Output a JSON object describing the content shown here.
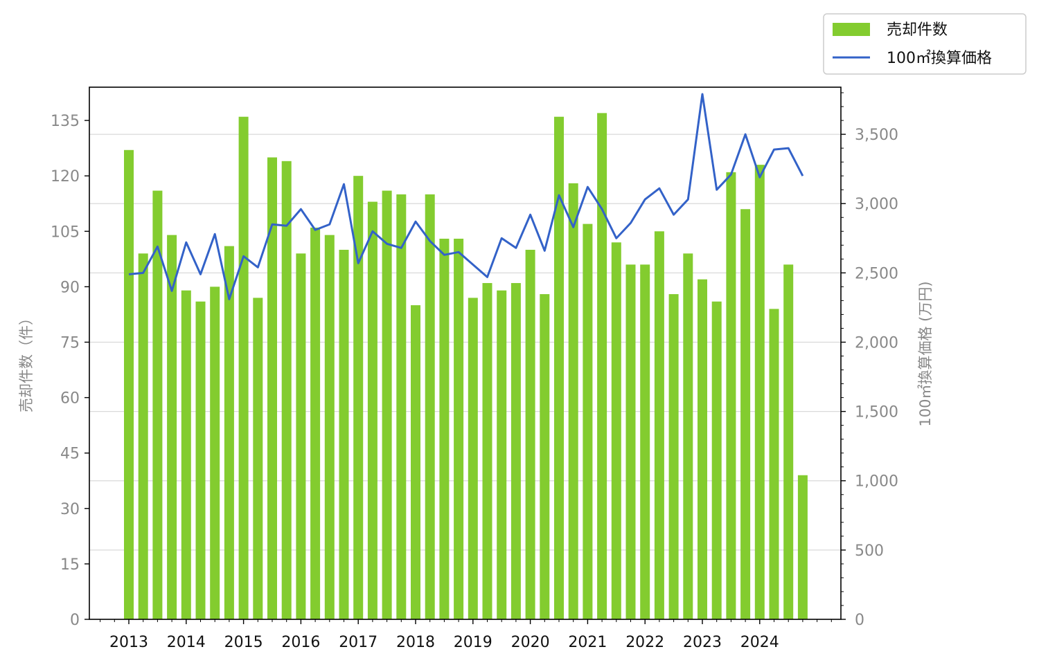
{
  "chart_data": {
    "type": "bar+line",
    "title": "",
    "x_tick_labels": [
      "2013",
      "2014",
      "2015",
      "2016",
      "2017",
      "2018",
      "2019",
      "2020",
      "2021",
      "2022",
      "2023",
      "2024"
    ],
    "ylabel_left": "売却件数（件）",
    "ylabel_right": "100㎡換算価格 (万円)",
    "ylim_left": [
      0,
      144
    ],
    "ylim_right": [
      0,
      3840
    ],
    "left_ticks": [
      0,
      15,
      30,
      45,
      60,
      75,
      90,
      105,
      120,
      135
    ],
    "right_ticks": [
      0,
      500,
      1000,
      1500,
      2000,
      2500,
      3000,
      3500
    ],
    "right_tick_labels": [
      "0",
      "500",
      "1,000",
      "1,500",
      "2,000",
      "2,500",
      "3,000",
      "3,500"
    ],
    "grid": "horizontal (right axis)",
    "legend_placement": "top-right",
    "series": [
      {
        "name": "売却件数",
        "type": "bar",
        "axis": "left",
        "color": "#83cc2f",
        "values": [
          127,
          99,
          116,
          104,
          89,
          86,
          90,
          101,
          136,
          87,
          125,
          124,
          99,
          106,
          104,
          100,
          120,
          113,
          116,
          115,
          85,
          115,
          103,
          103,
          87,
          91,
          89,
          91,
          100,
          88,
          136,
          118,
          107,
          137,
          102,
          96,
          96,
          105,
          88,
          99,
          92,
          86,
          121,
          111,
          123,
          84,
          96,
          39
        ]
      },
      {
        "name": "100㎡換算価格",
        "type": "line",
        "axis": "right",
        "color": "#3362c8",
        "values": [
          2490,
          2500,
          2690,
          2370,
          2720,
          2490,
          2780,
          2310,
          2620,
          2540,
          2850,
          2840,
          2960,
          2810,
          2850,
          3140,
          2570,
          2800,
          2710,
          2680,
          2870,
          2730,
          2630,
          2650,
          2560,
          2470,
          2750,
          2680,
          2920,
          2660,
          3060,
          2830,
          3120,
          2960,
          2750,
          2860,
          3030,
          3110,
          2920,
          3030,
          3790,
          3100,
          3210,
          3500,
          3190,
          3390,
          3400,
          3200
        ]
      }
    ]
  }
}
